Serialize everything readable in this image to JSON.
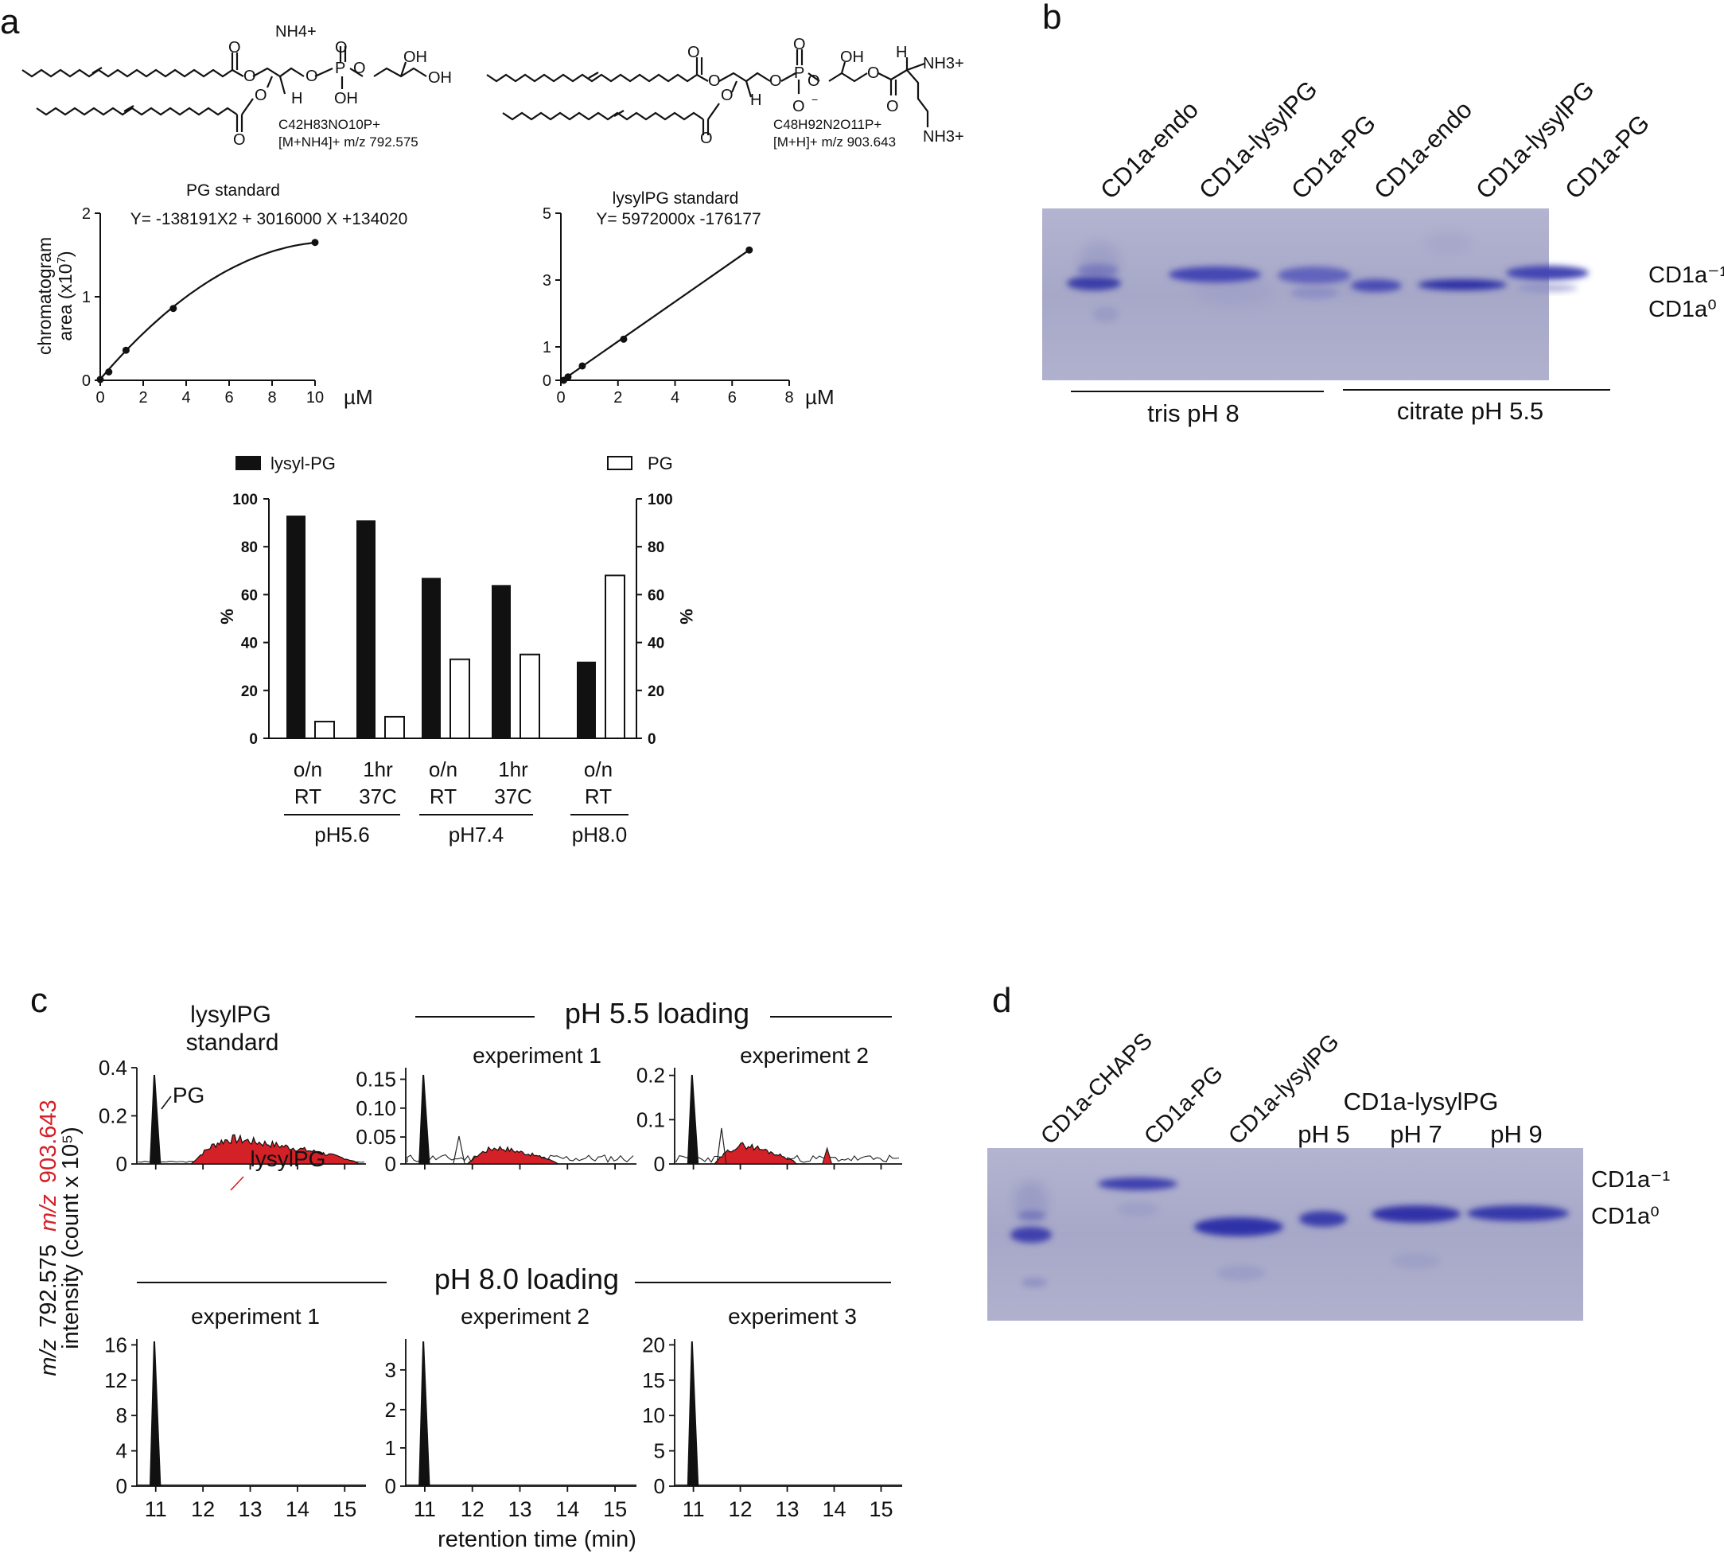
{
  "panels": {
    "a": "a",
    "b": "b",
    "c": "c",
    "d": "d"
  },
  "colors": {
    "black": "#111111",
    "red": "#d42027",
    "gel_bg": "#a9abc9",
    "band": "#3b3fb0"
  },
  "structures": {
    "pg": {
      "nh4": "NH4+",
      "formula": "C42H83NO10P+",
      "ion": "[M+NH4]+ m/z 792.575"
    },
    "lysylpg": {
      "nh3_top": "NH3+",
      "nh3_bottom": "NH3+",
      "formula": "C48H92N2O11P+",
      "ion": "[M+H]+ m/z 903.643"
    }
  },
  "chart_data": [
    {
      "id": "pg-standard",
      "type": "line",
      "title": "PG standard",
      "equation": "Y= -138191X2 + 3016000 X +134020",
      "ylabel": "chromatogram area (x10^7)",
      "xlabel": "µM",
      "xticks": [
        "0",
        "2",
        "4",
        "6",
        "8",
        "10"
      ],
      "yticks": [
        "0",
        "1",
        "2"
      ],
      "xlim": [
        0,
        10
      ],
      "ylim": [
        0,
        2
      ],
      "points": [
        [
          0,
          0.01
        ],
        [
          0.4,
          0.1
        ],
        [
          1.2,
          0.36
        ],
        [
          3.4,
          0.86
        ],
        [
          10,
          1.65
        ]
      ]
    },
    {
      "id": "lysylpg-standard",
      "type": "line",
      "title": "lysylPG standard",
      "equation": "Y= 5972000x -176177",
      "xlabel": "µM",
      "xticks": [
        "0",
        "2",
        "4",
        "6",
        "8"
      ],
      "yticks": [
        "0",
        "1",
        "3",
        "5"
      ],
      "xlim": [
        0,
        8
      ],
      "ylim": [
        0,
        5
      ],
      "points": [
        [
          0.1,
          0.0
        ],
        [
          0.25,
          0.1
        ],
        [
          0.75,
          0.43
        ],
        [
          2.2,
          1.23
        ],
        [
          6.6,
          3.9
        ]
      ]
    },
    {
      "id": "ph-percent",
      "type": "bar",
      "legend": [
        "lysyl-PG",
        "PG"
      ],
      "ylabel_left": "%",
      "ylabel_right": "%",
      "yticks": [
        "0",
        "20",
        "40",
        "60",
        "80",
        "100"
      ],
      "ylim": [
        0,
        100
      ],
      "categories": [
        [
          "o/n",
          "RT"
        ],
        [
          "1hr",
          "37C"
        ],
        [
          "o/n",
          "RT"
        ],
        [
          "1hr",
          "37C"
        ],
        [
          "o/n",
          "RT"
        ]
      ],
      "groups": [
        {
          "label": "pH5.6",
          "span": [
            0,
            1
          ]
        },
        {
          "label": "pH7.4",
          "span": [
            2,
            3
          ]
        },
        {
          "label": "pH8.0",
          "span": [
            4,
            4
          ]
        }
      ],
      "series": [
        {
          "name": "lysyl-PG",
          "values": [
            93,
            91,
            67,
            64,
            32
          ]
        },
        {
          "name": "PG",
          "values": [
            7,
            9,
            33,
            35,
            68
          ]
        }
      ]
    }
  ],
  "gel_b": {
    "lanes": [
      "CD1a-endo",
      "CD1a-lysylPG",
      "CD1a-PG",
      "CD1a-endo",
      "CD1a-lysylPG",
      "CD1a-PG"
    ],
    "markers": [
      "CD1a⁻¹",
      "CD1a⁰"
    ],
    "buffers": [
      "tris pH 8",
      "citrate pH 5.5"
    ]
  },
  "panel_c": {
    "ylabel_mz1": "m/z",
    "ylabel_a": "792.575",
    "ylabel_mz2": "m/z",
    "ylabel_b": "903.643",
    "ylabel2": "intensity (count x 10⁵)",
    "xlabel": "retention time (min)",
    "headers": {
      "ph55": "pH 5.5 loading",
      "ph80": "pH 8.0 loading",
      "std1": "lysylPG",
      "std2": "standard"
    },
    "peak_labels": {
      "pg": "PG",
      "lysylpg": "lysylPG"
    },
    "xticks": [
      "11",
      "12",
      "13",
      "14",
      "15"
    ],
    "top": [
      {
        "title": "",
        "yticks": [
          "0",
          "0.2",
          "0.4"
        ]
      },
      {
        "title": "experiment 1",
        "yticks": [
          "0",
          "0.05",
          "0.10",
          "0.15"
        ]
      },
      {
        "title": "experiment 2",
        "yticks": [
          "0",
          "0.1",
          "0.2"
        ]
      }
    ],
    "bottom": [
      {
        "title": "experiment 1",
        "yticks": [
          "0",
          "4",
          "8",
          "12",
          "16"
        ]
      },
      {
        "title": "experiment 2",
        "yticks": [
          "0",
          "1",
          "2",
          "3"
        ]
      },
      {
        "title": "experiment 3",
        "yticks": [
          "0",
          "5",
          "10",
          "15",
          "20"
        ]
      }
    ]
  },
  "gel_d": {
    "lanes": [
      "CD1a-CHAPS",
      "CD1a-PG",
      "CD1a-lysylPG"
    ],
    "group_label": "CD1a-lysylPG",
    "ph_lanes": [
      "pH 5",
      "pH 7",
      "pH 9"
    ],
    "markers": [
      "CD1a⁻¹",
      "CD1a⁰"
    ]
  }
}
